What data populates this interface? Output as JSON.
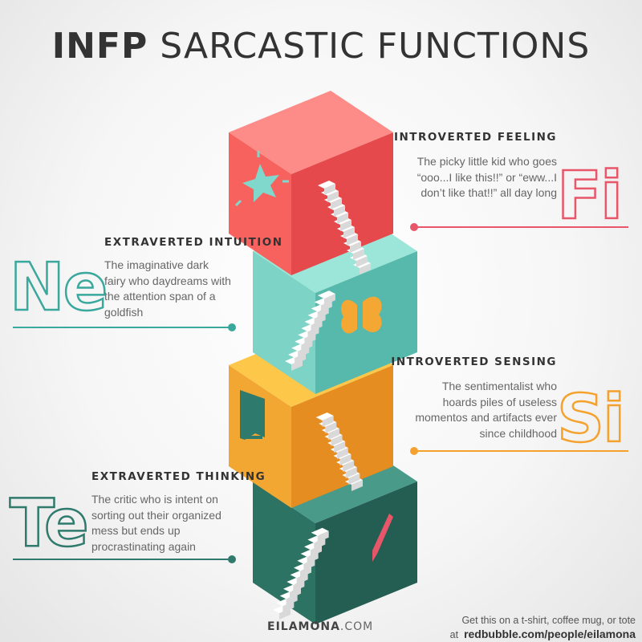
{
  "title": {
    "bold": "INFP",
    "rest": "SARCASTIC FUNCTIONS"
  },
  "functions": [
    {
      "code": "Fi",
      "name": "INTROVERTED FEELING",
      "description": "The picky little kid who goes “ooo...I like this!!” or “eww...I don’t like that!!” all day long",
      "color": "#e8566a",
      "icon": "star-icon"
    },
    {
      "code": "Ne",
      "name": "EXTRAVERTED INTUITION",
      "description": "The imaginative dark fairy who daydreams with the attention span of a goldfish",
      "color": "#3aa89c",
      "icon": "butterfly-icon"
    },
    {
      "code": "Si",
      "name": "INTROVERTED SENSING",
      "description": "The sentimentalist who hoards piles of useless momentos and artifacts ever since childhood",
      "color": "#f4a22d",
      "icon": "book-icon"
    },
    {
      "code": "Te",
      "name": "EXTRAVERTED THINKING",
      "description": "The critic who is intent on sorting out their organized mess but ends up procrastinating again",
      "color": "#2f7a6c",
      "icon": "fountain-pen-icon"
    }
  ],
  "footer": {
    "brand_bold": "EILAMONA",
    "brand_rest": ".COM",
    "promo_line1": "Get this on a t-shirt, coffee mug, or tote",
    "promo_prefix": "at",
    "promo_link": "redbubble.com/people/eilamona"
  }
}
